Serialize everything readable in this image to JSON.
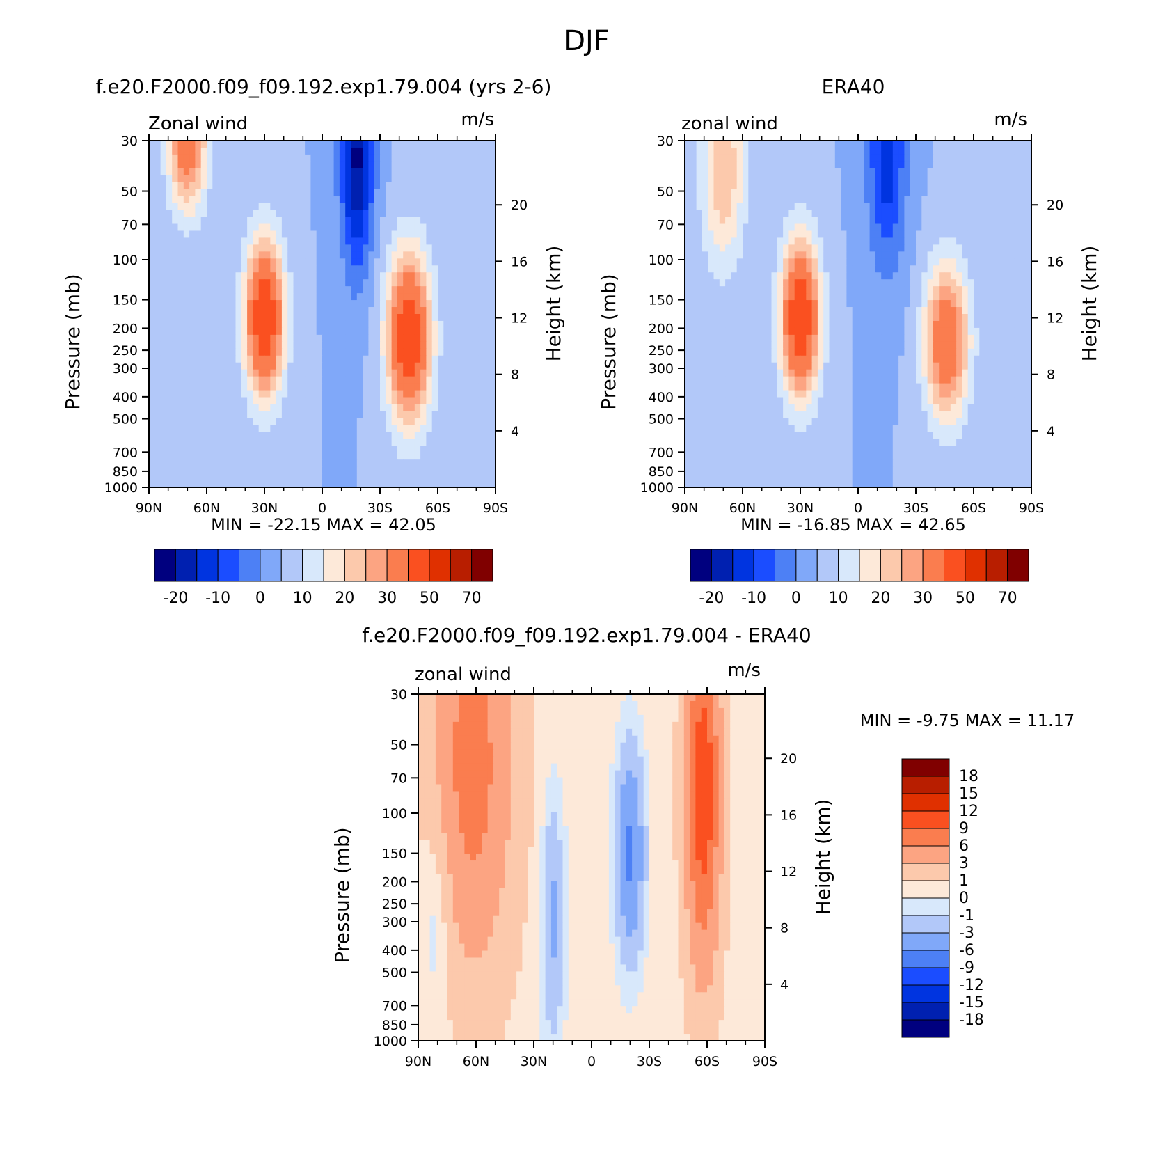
{
  "figure": {
    "title": "DJF",
    "panels": [
      {
        "title": "f.e20.F2000.f09_f09.192.exp1.79.004 (yrs 2-6)",
        "left_label": "Zonal wind",
        "right_label": "m/s",
        "min_max": "MIN = -22.15 MAX = 42.05"
      },
      {
        "title": "ERA40",
        "left_label": "zonal wind",
        "right_label": "m/s",
        "min_max": "MIN = -16.85 MAX = 42.65"
      },
      {
        "title": "f.e20.F2000.f09_f09.192.exp1.79.004 - ERA40",
        "left_label": "zonal wind",
        "right_label": "m/s",
        "min_max": "MIN = -9.75 MAX = 11.17"
      }
    ]
  },
  "axes": {
    "ylabel": "Pressure (mb)",
    "y2label": "Height (km)",
    "pressure_ticks": [
      "30",
      "50",
      "70",
      "100",
      "150",
      "200",
      "250",
      "300",
      "400",
      "500",
      "700",
      "850",
      "1000"
    ],
    "height_ticks": [
      "20",
      "16",
      "12",
      "8",
      "4"
    ],
    "lat_ticks": [
      "90N",
      "60N",
      "30N",
      "0",
      "30S",
      "60S",
      "90S"
    ]
  },
  "colorbars": {
    "abs_labels": [
      "-20",
      "-10",
      "0",
      "10",
      "20",
      "30",
      "50",
      "70"
    ],
    "abs_colors": [
      "#00007f",
      "#0020b0",
      "#0034e0",
      "#1b4dff",
      "#4d80f5",
      "#80a8f9",
      "#b2c8f9",
      "#d8e8fb",
      "#fde9d9",
      "#fcc9ac",
      "#fca482",
      "#fa7d4f",
      "#fa5020",
      "#e03000",
      "#b81e00",
      "#800000"
    ],
    "diff_labels": [
      "18",
      "15",
      "12",
      "9",
      "6",
      "3",
      "1",
      "0",
      "-1",
      "-3",
      "-6",
      "-9",
      "-12",
      "-15",
      "-18"
    ],
    "diff_colors": [
      "#800000",
      "#b81e00",
      "#e03000",
      "#fa5020",
      "#fa7d4f",
      "#fca482",
      "#fcc9ac",
      "#fde9d9",
      "#d8e8fb",
      "#b2c8f9",
      "#80a8f9",
      "#4d80f5",
      "#1b4dff",
      "#0034e0",
      "#0020b0",
      "#00007f"
    ]
  },
  "chart_data": [
    {
      "type": "heatmap",
      "title": "f.e20.F2000.f09_f09.192.exp1.79.004 (yrs 2-6)",
      "variable": "Zonal wind",
      "units": "m/s",
      "xlabel": "",
      "ylabel": "Pressure (mb)",
      "y2label": "Height (km)",
      "x_range": [
        "90N",
        "90S"
      ],
      "y_range": [
        1000,
        30
      ],
      "min": -22.15,
      "max": 42.05,
      "features": [
        {
          "lat": 30,
          "p": 180,
          "sx": 7,
          "sp": 0.55,
          "amp": 46
        },
        {
          "lat": -45,
          "p": 220,
          "sx": 8,
          "sp": 0.6,
          "amp": 44
        },
        {
          "lat": 70,
          "p": 30,
          "sx": 7,
          "sp": 0.5,
          "amp": 32
        },
        {
          "lat": -18,
          "p": 35,
          "sx": 6,
          "sp": 0.8,
          "amp": -26
        }
      ]
    },
    {
      "type": "heatmap",
      "title": "ERA40",
      "variable": "zonal wind",
      "units": "m/s",
      "xlabel": "",
      "ylabel": "Pressure (mb)",
      "y2label": "Height (km)",
      "x_range": [
        "90N",
        "90S"
      ],
      "y_range": [
        1000,
        30
      ],
      "min": -16.85,
      "max": 42.65,
      "features": [
        {
          "lat": 30,
          "p": 180,
          "sx": 7,
          "sp": 0.55,
          "amp": 46
        },
        {
          "lat": -46,
          "p": 230,
          "sx": 8,
          "sp": 0.55,
          "amp": 34
        },
        {
          "lat": 70,
          "p": 40,
          "sx": 8,
          "sp": 0.7,
          "amp": 20
        },
        {
          "lat": -15,
          "p": 35,
          "sx": 7,
          "sp": 0.8,
          "amp": -18
        }
      ]
    },
    {
      "type": "heatmap",
      "title": "f.e20.F2000.f09_f09.192.exp1.79.004 - ERA40",
      "variable": "zonal wind",
      "units": "m/s",
      "xlabel": "",
      "ylabel": "Pressure (mb)",
      "y2label": "Height (km)",
      "x_range": [
        "90N",
        "90S"
      ],
      "y_range": [
        1000,
        30
      ],
      "min": -9.75,
      "max": 11.17,
      "features": [
        {
          "lat": 62,
          "p": 60,
          "sx": 14,
          "sp": 1.4,
          "amp": 7
        },
        {
          "lat": -58,
          "p": 80,
          "sx": 6,
          "sp": 1.2,
          "amp": 11
        },
        {
          "lat": -20,
          "p": 150,
          "sx": 5,
          "sp": 0.7,
          "amp": -7
        },
        {
          "lat": 20,
          "p": 300,
          "sx": 4,
          "sp": 0.8,
          "amp": -4
        },
        {
          "lat": 80,
          "p": 250,
          "sx": 6,
          "sp": 0.8,
          "amp": -2
        }
      ]
    }
  ]
}
